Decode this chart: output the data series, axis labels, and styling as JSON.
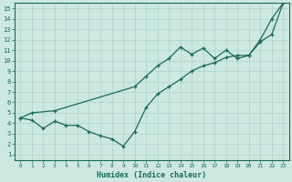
{
  "xlabel": "Humidex (Indice chaleur)",
  "ylabel": "",
  "background_color": "#cce8e0",
  "grid_color": "#b0d8ce",
  "line_color": "#1a6b5a",
  "xlim": [
    -0.5,
    23.5
  ],
  "ylim": [
    0.5,
    15.5
  ],
  "xticks": [
    0,
    1,
    2,
    3,
    4,
    5,
    6,
    7,
    8,
    9,
    10,
    11,
    12,
    13,
    14,
    15,
    16,
    17,
    18,
    19,
    20,
    21,
    22,
    23
  ],
  "yticks": [
    1,
    2,
    3,
    4,
    5,
    6,
    7,
    8,
    9,
    10,
    11,
    12,
    13,
    14,
    15
  ],
  "line1_x": [
    0,
    1,
    3,
    10,
    11,
    12,
    13,
    14,
    15,
    16,
    17,
    18,
    19,
    20,
    21,
    22,
    23
  ],
  "line1_y": [
    4.5,
    5.0,
    5.2,
    7.5,
    8.5,
    9.5,
    10.2,
    11.3,
    10.6,
    11.2,
    10.2,
    11.0,
    10.2,
    10.5,
    12.0,
    14.0,
    15.5
  ],
  "line2_x": [
    0,
    1,
    2,
    3,
    4,
    5,
    6,
    7,
    8,
    9,
    10,
    11,
    12,
    13,
    14,
    15,
    16,
    17,
    18,
    19,
    20,
    21,
    22,
    23
  ],
  "line2_y": [
    4.5,
    4.3,
    3.5,
    4.2,
    3.8,
    3.8,
    3.2,
    2.8,
    2.5,
    1.8,
    3.2,
    5.5,
    6.8,
    7.5,
    8.2,
    9.0,
    9.5,
    9.8,
    10.3,
    10.5,
    10.5,
    11.8,
    12.5,
    15.5
  ],
  "tick_fontsize": 5,
  "xlabel_fontsize": 6,
  "spine_linewidth": 0.8
}
